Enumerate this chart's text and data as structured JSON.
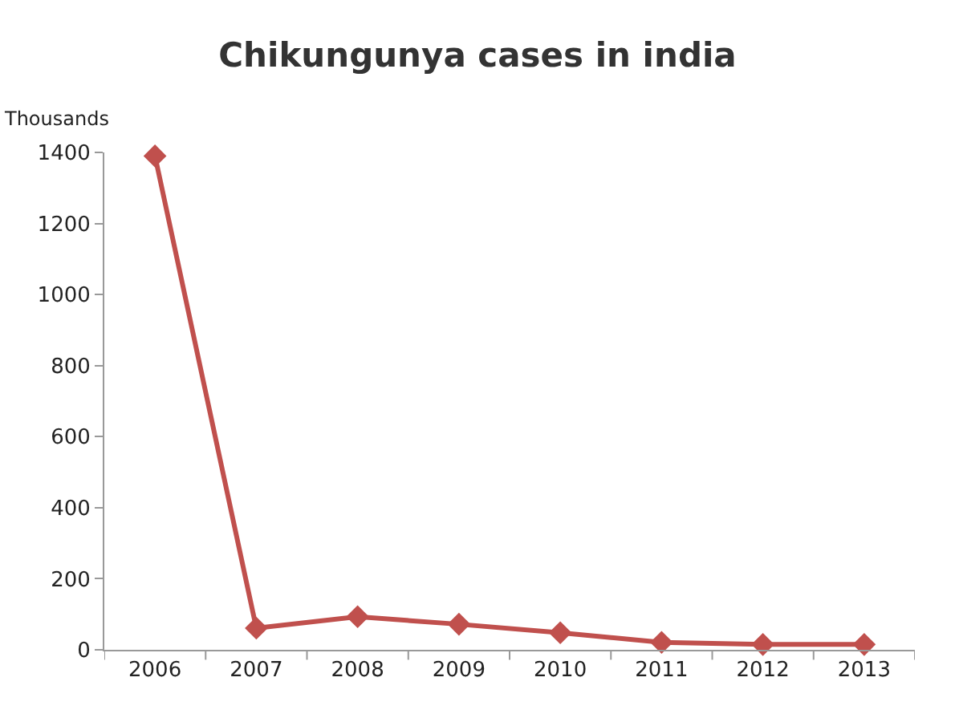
{
  "chart_data": {
    "type": "line",
    "title": "Chikungunya cases in india",
    "ylabel": "Thousands",
    "categories": [
      "2006",
      "2007",
      "2008",
      "2009",
      "2010",
      "2011",
      "2012",
      "2013"
    ],
    "series": [
      {
        "color": "#c0504d",
        "values": [
          1390,
          61,
          93,
          72,
          48,
          21,
          15,
          15
        ]
      }
    ],
    "ylim": [
      0,
      1400
    ],
    "yticks": [
      0,
      200,
      400,
      600,
      800,
      1000,
      1200,
      1400
    ],
    "marker": "diamond",
    "line_style": "solid"
  }
}
